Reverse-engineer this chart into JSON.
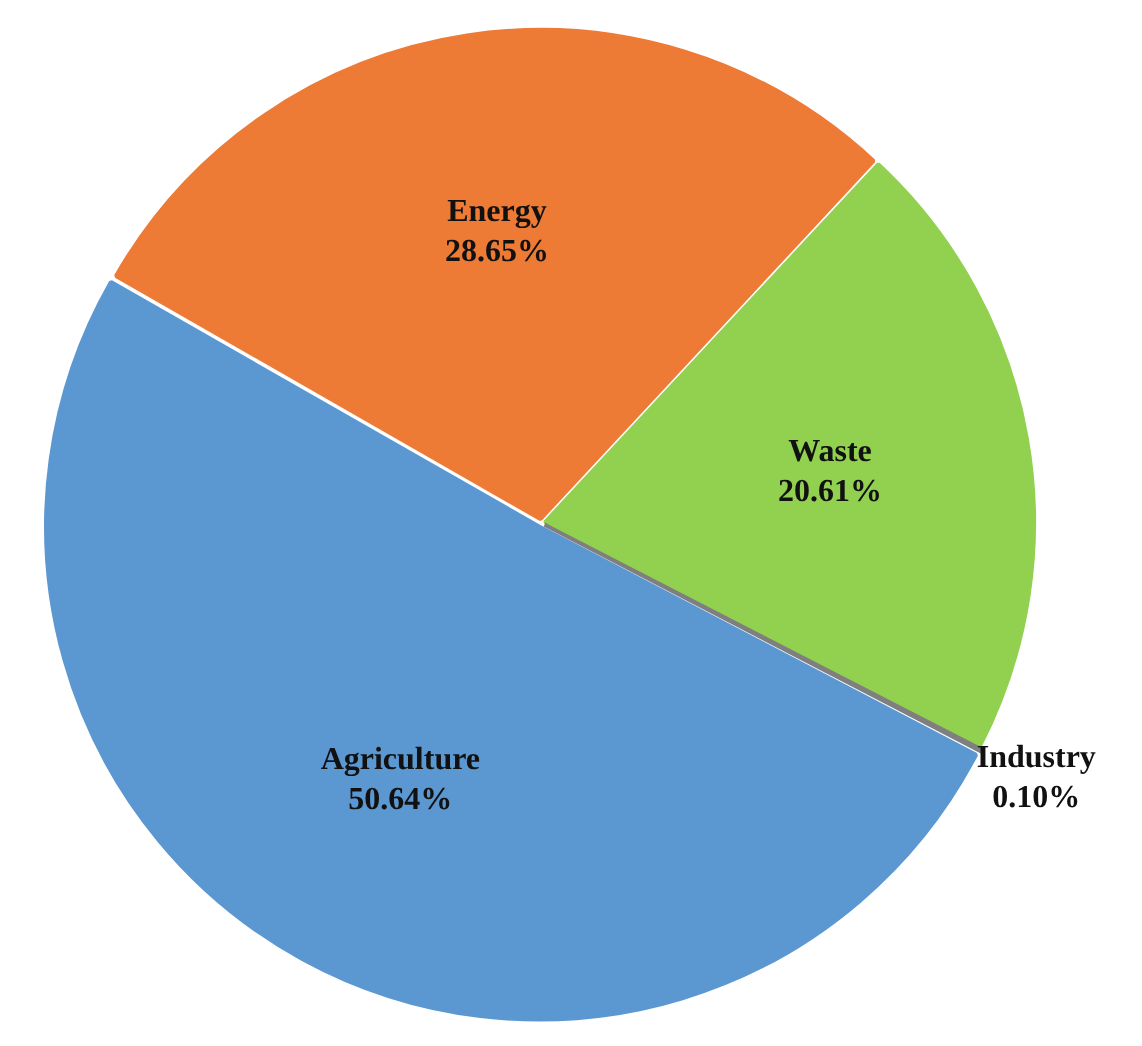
{
  "chart_data": {
    "type": "pie",
    "categories": [
      "Agriculture",
      "Energy",
      "Waste",
      "Industry"
    ],
    "values": [
      50.64,
      28.65,
      20.61,
      0.1
    ],
    "colors": [
      "#5b97d1",
      "#ed7a35",
      "#92d050",
      "#7f7f7f"
    ],
    "value_labels": [
      "50.64%",
      "28.65%",
      "20.61%",
      "0.10%"
    ],
    "legend": false
  }
}
